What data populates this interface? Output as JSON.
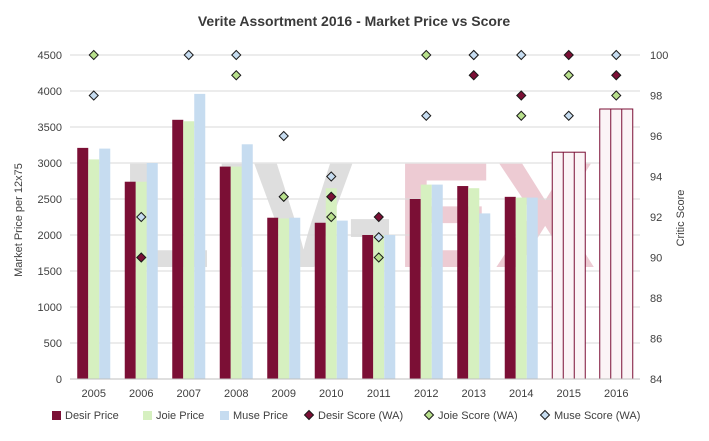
{
  "chart_data": {
    "type": "bar",
    "title": "Verite Assortment 2016 - Market Price vs Score",
    "ylabel": "Market Price per 12x75",
    "y2label": "Critic Score",
    "categories": [
      "2005",
      "2006",
      "2007",
      "2008",
      "2009",
      "2010",
      "2011",
      "2012",
      "2013",
      "2014",
      "2015",
      "2016"
    ],
    "ylim": [
      0,
      4500
    ],
    "yticks": [
      0,
      500,
      1000,
      1500,
      2000,
      2500,
      3000,
      3500,
      4000,
      4500
    ],
    "y2lim": [
      84,
      100
    ],
    "y2ticks": [
      84,
      86,
      88,
      90,
      92,
      94,
      96,
      98,
      100
    ],
    "grid": true,
    "legend_position": "bottom",
    "series": [
      {
        "name": "Desir Price",
        "kind": "bar",
        "color": "#7b0f35",
        "values": [
          3210,
          2740,
          3600,
          2950,
          2240,
          2170,
          2000,
          2500,
          2680,
          2530,
          null,
          null
        ]
      },
      {
        "name": "Joie Price",
        "kind": "bar",
        "color": "#d6f0c0",
        "values": [
          3050,
          2740,
          3580,
          2950,
          2230,
          2650,
          2000,
          2700,
          2650,
          2520,
          null,
          null
        ]
      },
      {
        "name": "Muse Price",
        "kind": "bar",
        "color": "#c6dcf0",
        "values": [
          3200,
          3000,
          3960,
          3260,
          2240,
          2200,
          2000,
          2700,
          2300,
          2520,
          null,
          null
        ]
      },
      {
        "name": "Desir Score (WA)",
        "kind": "marker",
        "axis": "right",
        "color": "#7b0f35",
        "values": [
          null,
          90,
          null,
          null,
          93,
          93,
          92,
          null,
          99,
          98,
          100,
          99
        ]
      },
      {
        "name": "Joie Score (WA)",
        "kind": "marker",
        "axis": "right",
        "color": "#b8e08c",
        "values": [
          100,
          null,
          null,
          99,
          93,
          92,
          90,
          100,
          100,
          97,
          99,
          98
        ]
      },
      {
        "name": "Muse Score (WA)",
        "kind": "marker",
        "axis": "right",
        "color": "#c6dcf0",
        "values": [
          98,
          92,
          100,
          100,
          96,
          94,
          91,
          97,
          100,
          100,
          97,
          100
        ]
      }
    ],
    "estimate_bars": {
      "categories": [
        "2015",
        "2016"
      ],
      "values": [
        3150,
        3750
      ],
      "color": "#7b0f35"
    }
  },
  "watermark": {
    "text": "LIV-EX",
    "color_left": "#9a9a9a",
    "color_right": "#c8607a"
  }
}
